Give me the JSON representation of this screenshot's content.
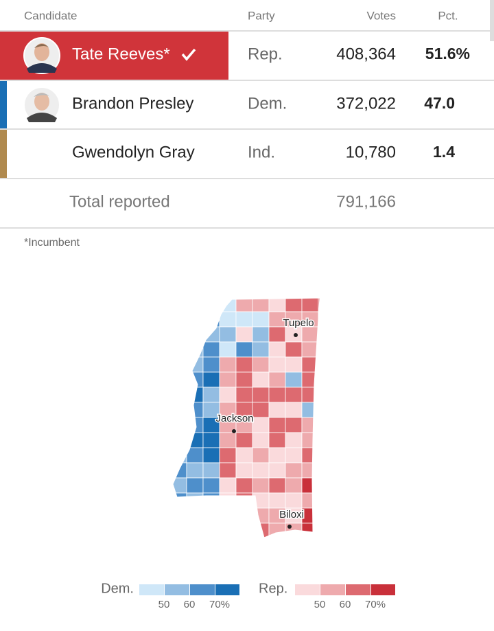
{
  "table": {
    "headers": [
      "Candidate",
      "Party",
      "Votes",
      "Pct."
    ],
    "rows": [
      {
        "candidate": "Tate Reeves*",
        "party": "Rep.",
        "votes": "408,364",
        "pct": "51.6%"
      },
      {
        "candidate": "Brandon Presley",
        "party": "Dem.",
        "votes": "372,022",
        "pct": "47.0"
      },
      {
        "candidate": "Gwendolyn Gray",
        "party": "Ind.",
        "votes": "10,780",
        "pct": "1.4"
      }
    ],
    "total": {
      "label": "Total reported",
      "votes": "791,166"
    }
  },
  "footnote": "*Incumbent",
  "map": {
    "cities": [
      "Tupelo",
      "Jackson",
      "Biloxi"
    ],
    "legend": {
      "dem": {
        "label": "Dem.",
        "ticks": [
          "50",
          "60",
          "70%"
        ]
      },
      "rep": {
        "label": "Rep.",
        "ticks": [
          "50",
          "60",
          "70%"
        ]
      }
    }
  }
}
